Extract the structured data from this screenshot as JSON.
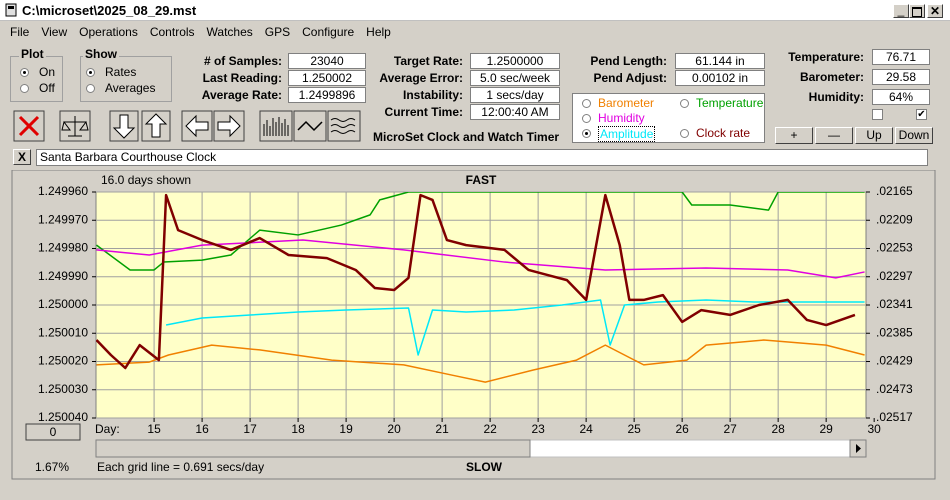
{
  "window": {
    "title": "C:\\microset\\2025_08_29.mst"
  },
  "menu": [
    "File",
    "View",
    "Operations",
    "Controls",
    "Watches",
    "GPS",
    "Configure",
    "Help"
  ],
  "plot_group": {
    "label": "Plot",
    "options": [
      "On",
      "Off"
    ],
    "selected_index": 0
  },
  "show_group": {
    "label": "Show",
    "options": [
      "Rates",
      "Averages"
    ],
    "selected_index": 0
  },
  "samples_fields": [
    {
      "label": "# of Samples:",
      "value": 23040
    },
    {
      "label": "Last Reading:",
      "value": 1.250002
    },
    {
      "label": "Average Rate:",
      "value": 1.2499896
    }
  ],
  "rate_fields": [
    {
      "label": "Target Rate:",
      "value": "1.2500000"
    },
    {
      "label": "Average Error:",
      "value": "5.0 sec/week"
    },
    {
      "label": "Instability:",
      "value": "1 secs/day"
    },
    {
      "label": "Current Time:",
      "value": "12:00:40 AM"
    }
  ],
  "pendulum_fields": [
    {
      "label": "Pend Length:",
      "value": "61.144 in"
    },
    {
      "label": "Pend Adjust:",
      "value": "0.00102 in"
    }
  ],
  "weather_fields": [
    {
      "label": "Temperature:",
      "value": 76.71
    },
    {
      "label": "Barometer:",
      "value": 29.58
    },
    {
      "label": "Humidity:",
      "value": "64%"
    }
  ],
  "checkboxes": [
    false,
    true
  ],
  "app_title": "MicroSet Clock and Watch Timer",
  "buttons": [
    "+",
    "—",
    "Up",
    "Down"
  ],
  "clear_button": "X",
  "clock_name": "Santa Barbara Courthouse Clock",
  "chart_data": {
    "type": "line",
    "days_shown": "16.0 days shown",
    "top_label": "FAST",
    "bottom_label": "SLOW",
    "xlabel": "Day:",
    "grid_note": "Each grid line = 0.691 secs/day",
    "zoom": "1.67%",
    "scroll_button": "0",
    "grid": true,
    "plot_background": "#ffffc8",
    "xlim": [
      13.79,
      29.83
    ],
    "xticks": [
      15,
      16,
      17,
      18,
      19,
      20,
      21,
      22,
      23,
      24,
      25,
      26,
      27,
      28,
      29,
      30
    ],
    "ylim": [
      1.25004,
      1.24996
    ],
    "yticks": [
      {
        "value": 1.24996,
        "label": "1.249960"
      },
      {
        "value": 1.24997,
        "label": "1.249970"
      },
      {
        "value": 1.24998,
        "label": "1.249980"
      },
      {
        "value": 1.24999,
        "label": "1.249990"
      },
      {
        "value": 1.25,
        "label": "1.250000"
      },
      {
        "value": 1.25001,
        "label": "1.250010"
      },
      {
        "value": 1.25002,
        "label": "1.250020"
      },
      {
        "value": 1.25003,
        "label": "1.250030"
      },
      {
        "value": 1.25004,
        "label": "1.250040"
      }
    ],
    "y2lim": [
      0.02517,
      0.02165
    ],
    "y2ticks": [
      {
        "value": 0.02165,
        "label": ".02165"
      },
      {
        "value": 0.02209,
        "label": ".02209"
      },
      {
        "value": 0.02253,
        "label": ".02253"
      },
      {
        "value": 0.02297,
        "label": ".02297"
      },
      {
        "value": 0.02341,
        "label": ".02341"
      },
      {
        "value": 0.02385,
        "label": ".02385"
      },
      {
        "value": 0.02429,
        "label": ".02429"
      },
      {
        "value": 0.02473,
        "label": ".02473"
      },
      {
        "value": 0.02517,
        "label": ".02517"
      }
    ],
    "series": [
      {
        "name": "Barometer",
        "color": "#f08000",
        "x": [
          13.8,
          14.9,
          15.3,
          16.2,
          17.2,
          18.7,
          20.2,
          21.2,
          21.9,
          22.9,
          23.8,
          24.4,
          25.2,
          26.1,
          26.5,
          27.7,
          29.0,
          29.8
        ],
        "values": [
          1.2500212,
          1.2500202,
          1.2500177,
          1.2500142,
          1.2500159,
          1.2500195,
          1.2500212,
          1.2500248,
          1.2500273,
          1.250023,
          1.2500195,
          1.2500142,
          1.2500212,
          1.2500195,
          1.2500142,
          1.2500124,
          1.2500142,
          1.2500177
        ]
      },
      {
        "name": "Temperature",
        "color": "#00a000",
        "x": [
          13.8,
          14.5,
          15.0,
          15.2,
          16.0,
          16.6,
          17.2,
          18.0,
          18.9,
          19.5,
          19.7,
          20.3,
          21.0,
          24.0,
          26.0,
          26.2,
          27.0,
          27.8,
          28.0,
          29.8
        ],
        "values": [
          1.2499788,
          1.2499876,
          1.2499876,
          1.2499848,
          1.2499841,
          1.2499823,
          1.2499735,
          1.2499752,
          1.2499717,
          1.2499681,
          1.2499628,
          1.24996,
          1.24996,
          1.24996,
          1.24996,
          1.2499646,
          1.2499646,
          1.2499664,
          1.24996,
          1.24996
        ]
      },
      {
        "name": "Humidity",
        "color": "#e000e0",
        "x": [
          13.8,
          14.9,
          16.0,
          18.1,
          20.2,
          22.3,
          24.4,
          26.5,
          28.2,
          29.2,
          29.8
        ],
        "values": [
          1.2499805,
          1.2499823,
          1.2499788,
          1.249977,
          1.2499805,
          1.2499848,
          1.2499876,
          1.2499869,
          1.2499876,
          1.2499904,
          1.2499883
        ]
      },
      {
        "name": "Amplitude",
        "color": "#00e8f8",
        "axis": "y2",
        "checked": true,
        "x": [
          15.25,
          16.0,
          17.0,
          18.0,
          19.0,
          20.3,
          20.5,
          20.8,
          21.5,
          22.5,
          23.5,
          24.3,
          24.5,
          24.8,
          25.5,
          26.5,
          27.5,
          28.5,
          29.8
        ],
        "values": [
          0.023722,
          0.023612,
          0.023566,
          0.023519,
          0.023488,
          0.023457,
          0.024189,
          0.023488,
          0.023519,
          0.023488,
          0.02341,
          0.023332,
          0.024033,
          0.02341,
          0.023363,
          0.023332,
          0.023363,
          0.023363,
          0.023363
        ]
      },
      {
        "name": "Clock rate",
        "color": "#800000",
        "x": [
          13.8,
          14.1,
          14.4,
          14.7,
          15.1,
          15.25,
          15.5,
          16.0,
          16.6,
          17.2,
          17.8,
          18.6,
          19.2,
          19.6,
          20.0,
          20.3,
          20.55,
          20.8,
          21.1,
          21.5,
          22.3,
          22.8,
          23.2,
          23.6,
          24.0,
          24.4,
          24.7,
          24.9,
          25.2,
          25.6,
          26.0,
          26.4,
          27.0,
          27.6,
          28.2,
          28.6,
          29.0,
          29.6
        ],
        "values": [
          1.2500124,
          1.2500177,
          1.2500223,
          1.2500142,
          1.2500195,
          1.2499611,
          1.2499735,
          1.249977,
          1.2499805,
          1.2499763,
          1.2499823,
          1.2499834,
          1.2499876,
          1.249994,
          1.2499947,
          1.2499904,
          1.2499611,
          1.2499628,
          1.249977,
          1.2499788,
          1.2499805,
          1.2499876,
          1.2499894,
          1.2499912,
          1.2499982,
          1.2499611,
          1.2499788,
          1.2499982,
          1.2499982,
          1.2499965,
          1.250006,
          1.2500018,
          1.2500035,
          1.25,
          1.2499982,
          1.2500053,
          1.2500071,
          1.2500035
        ]
      }
    ]
  }
}
